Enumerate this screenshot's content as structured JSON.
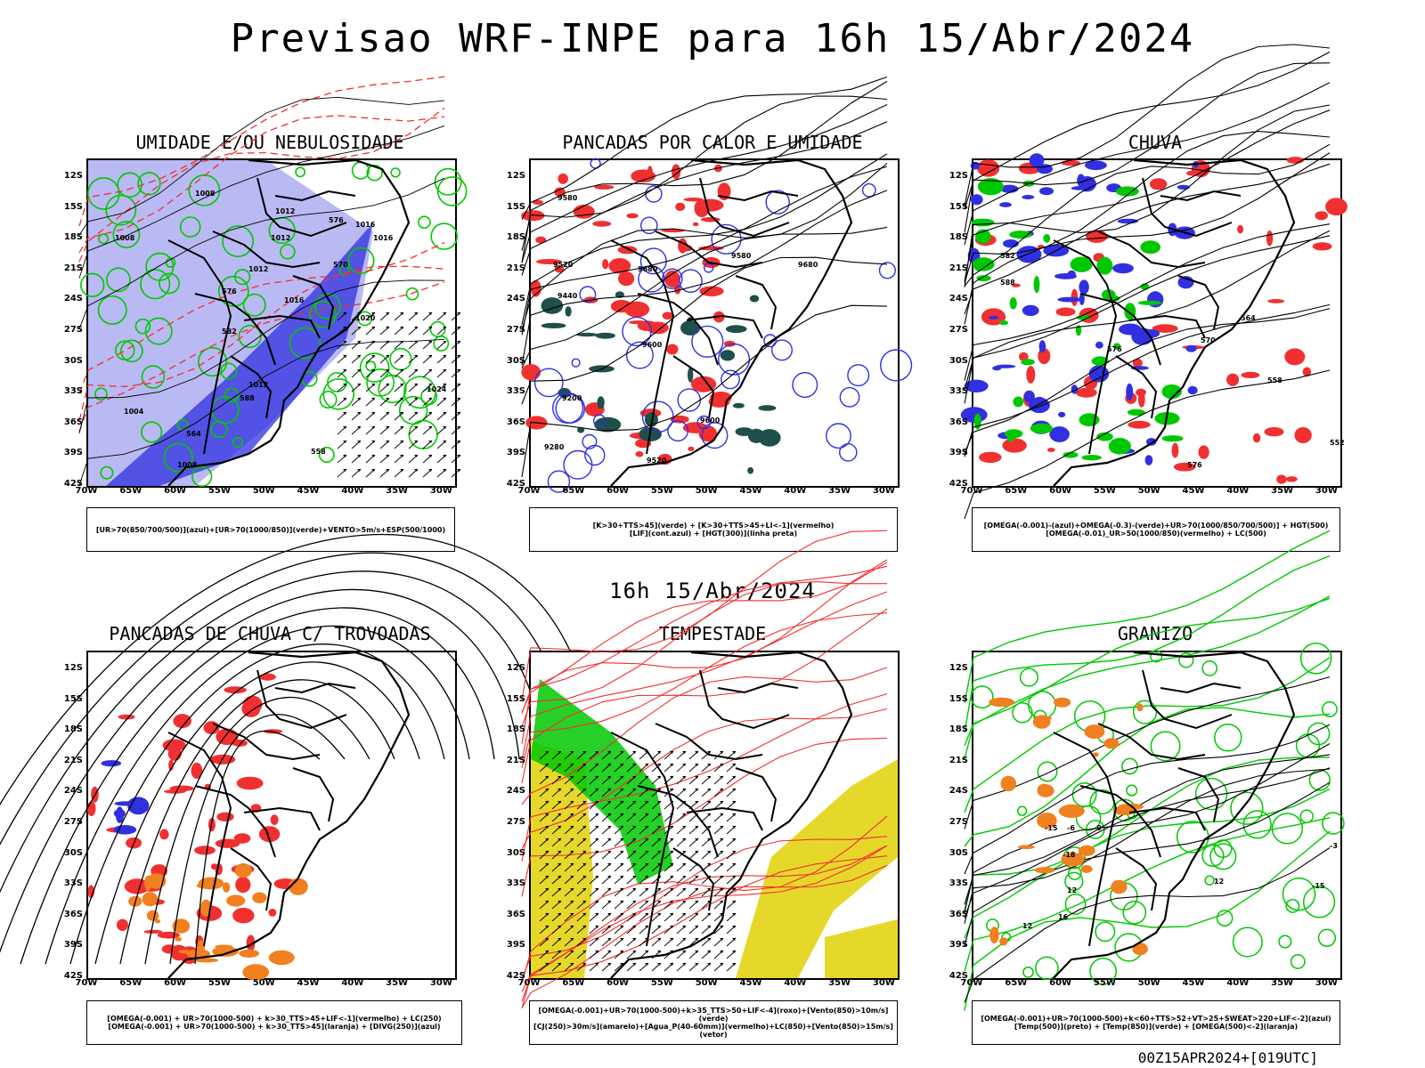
{
  "title": "Previsao WRF-INPE  para 16h 15/Abr/2024",
  "subtitle": "16h 15/Abr/2024",
  "footer": "00Z15APR2024+[019UTC]",
  "lat_labels": [
    "12S",
    "15S",
    "18S",
    "21S",
    "24S",
    "27S",
    "30S",
    "33S",
    "36S",
    "39S",
    "42S"
  ],
  "lon_labels": [
    "70W",
    "65W",
    "60W",
    "55W",
    "50W",
    "45W",
    "40W",
    "35W",
    "30W"
  ],
  "colors": {
    "blue": "#3030e0",
    "lightblue": "#a8a8f0",
    "green": "#00c800",
    "red": "#f03030",
    "darkgreen": "#1f4f4a",
    "yellow": "#e6d82a",
    "orange": "#f08020"
  },
  "panels": [
    {
      "title": "UMIDADE E/OU NEBULOSIDADE",
      "legend": [
        "[UR>70(850/700/500)](azul)+[UR>70(1000/850)](verde)+VENTO>5m/s+ESP(500/1000)"
      ],
      "labels": [
        "1008",
        "1012",
        "1012",
        "1016",
        "1016",
        "1012",
        "1020",
        "1024",
        "1008",
        "1004",
        "1008",
        "1012",
        "1016",
        "576",
        "570",
        "576",
        "582",
        "588",
        "564",
        "558"
      ]
    },
    {
      "title": "PANCADAS POR CALOR E UMIDADE",
      "legend": [
        "[K>30+TTS>45](verde) + [K>30+TTS>45+LI<-1](vermelho)",
        "[LIF](cont.azul) + [HGT(300)](linha preta)"
      ],
      "labels": [
        "9580",
        "9520",
        "9440",
        "9680",
        "9600",
        "9580",
        "9200",
        "9280",
        "9520",
        "9600",
        "9680"
      ]
    },
    {
      "title": "CHUVA",
      "legend": [
        "[OMEGA(-0.001)-(azul)+OMEGA(-0.3)-(verde)+UR>70(1000/850/700/500)] + HGT(500)",
        "[OMEGA(-0.01)_UR>50(1000/850)(vermelho) + LC(500)"
      ],
      "labels": [
        "582",
        "588",
        "576",
        "570",
        "564",
        "558",
        "552",
        "576"
      ]
    },
    {
      "title": "PANCADAS DE CHUVA C/ TROVOADAS",
      "legend": [
        "[OMEGA(-0.001) + UR>70(1000-500) + k>30_TTS>45+LIF<-1](vermelho) + LC(250)",
        "[OMEGA(-0.001) + UR>70(1000-500) + k>30_TTS>45](laranja) + [DIVG(250)](azul)"
      ],
      "labels": []
    },
    {
      "title": "TEMPESTADE",
      "legend": [
        "[OMEGA(-0.001)+UR>70(1000-500)+k>35_TTS>50+LIF<-4](roxo)+[Vento(850)>10m/s](verde)",
        "[CJ(250)>30m/s](amarelo)+[Agua_P(40-60mm)](vermelho)+LC(850)+[Vento(850)>15m/s](vetor)"
      ],
      "labels": []
    },
    {
      "title": "GRANIZO",
      "legend": [
        "[OMEGA(-0.001)+UR>70(1000-500)+k<60+TTS>52+VT>25+SWEAT>220+LIF<-2](azul)",
        "[Temp(500)](preto) + [Temp(850)](verde) + [OMEGA(500)<-2](laranja)"
      ],
      "labels": [
        "-15",
        "-18",
        "-6",
        "-9",
        "12",
        "16",
        "12",
        "-15",
        "12",
        "-3"
      ]
    }
  ]
}
